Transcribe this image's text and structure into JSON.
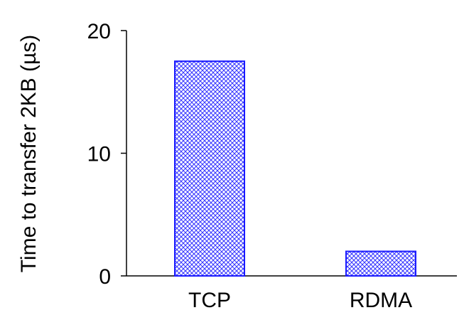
{
  "chart_data": {
    "type": "bar",
    "title": "",
    "xlabel": "",
    "ylabel": "Time to transfer 2KB (µs)",
    "categories": [
      "TCP",
      "RDMA"
    ],
    "values": [
      17.5,
      2.0
    ],
    "ylim": [
      0,
      20
    ],
    "yticks": [
      "0",
      "10",
      "20"
    ],
    "grid": false,
    "legend": "none",
    "bar_fill_pattern": "crosshatch",
    "colors": {
      "bar_edge": "#1a1aff",
      "hatch": "#3333ff",
      "bar_bg": "#ffffff",
      "axis": "#000000"
    }
  }
}
